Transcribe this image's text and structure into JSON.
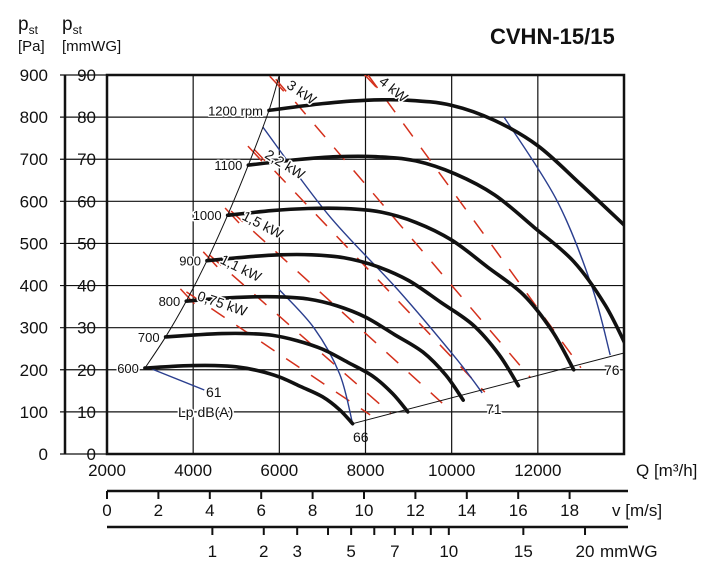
{
  "chart_data": {
    "type": "line",
    "title": "CVHN-15/15",
    "ylabel_pa": {
      "symbol": "p",
      "sub": "st",
      "unit": "[Pa]"
    },
    "ylabel_mmwg": {
      "symbol": "p",
      "sub": "st",
      "unit": "[mmWG]"
    },
    "xlabel": "Q [m³/h]",
    "xlim": [
      2000,
      14000
    ],
    "ylim": [
      0,
      900
    ],
    "grid": true,
    "x_ticks": [
      2000,
      4000,
      6000,
      8000,
      10000,
      12000
    ],
    "x_tick_labels": [
      "2000",
      "4000",
      "6000",
      "8000",
      "10000",
      "12000"
    ],
    "y_ticks_pa": [
      0,
      100,
      200,
      300,
      400,
      500,
      600,
      700,
      800,
      900
    ],
    "y_tick_labels_pa": [
      "0",
      "100",
      "200",
      "300",
      "400",
      "500",
      "600",
      "700",
      "800",
      "900"
    ],
    "y_tick_labels_mmwg": [
      "0",
      "10",
      "20",
      "30",
      "40",
      "50",
      "60",
      "70",
      "80",
      "90"
    ],
    "velocity_axis": {
      "label": "v [m/s]",
      "range": [
        0,
        20.2
      ],
      "ticks": [
        0,
        2,
        4,
        6,
        8,
        10,
        12,
        14,
        16,
        18
      ],
      "tick_labels": [
        "0",
        "2",
        "4",
        "6",
        "8",
        "10",
        "12",
        "14",
        "16",
        "18"
      ]
    },
    "dynamic_pressure_axis": {
      "label": "mmWG",
      "ticks_v": [
        4.1,
        6.1,
        7.4,
        8.6,
        9.5,
        10.4,
        11.2,
        11.9,
        12.6,
        13.3,
        16.2,
        18.6
      ],
      "ticks": [
        1,
        2,
        3,
        4,
        5,
        6,
        7,
        8,
        9,
        10,
        15,
        20
      ],
      "labeled": [
        "1",
        "2",
        "3",
        "",
        "5",
        "",
        "7",
        "",
        "",
        "10",
        "15",
        "20"
      ]
    },
    "series": [
      {
        "name": "600",
        "label": "600",
        "Q": [
          2880,
          3500,
          4000,
          4500,
          5000,
          5500,
          6000,
          6500,
          7000,
          7400,
          7700
        ],
        "P": [
          204,
          208,
          210,
          210,
          207,
          198,
          183,
          160,
          136,
          105,
          72
        ]
      },
      {
        "name": "700",
        "label": "700",
        "Q": [
          3360,
          4083,
          4667,
          5250,
          5833,
          6417,
          7000,
          7583,
          8167,
          8633,
          8983
        ],
        "P": [
          278,
          283,
          286,
          286,
          282,
          269,
          249,
          218,
          185,
          143,
          100
        ]
      },
      {
        "name": "800",
        "label": "800",
        "Q": [
          3840,
          4667,
          5333,
          6000,
          6667,
          7333,
          8000,
          8667,
          9333,
          9867,
          10267
        ],
        "P": [
          363,
          370,
          373,
          373,
          368,
          352,
          325,
          284,
          242,
          187,
          128
        ]
      },
      {
        "name": "900",
        "label": "900",
        "Q": [
          4320,
          5250,
          6000,
          6750,
          7500,
          8250,
          9000,
          9750,
          10500,
          11100,
          11550
        ],
        "P": [
          459,
          468,
          473,
          473,
          466,
          446,
          412,
          360,
          306,
          236,
          162
        ]
      },
      {
        "name": "1000",
        "label": "1000",
        "Q": [
          4800,
          5833,
          6667,
          7500,
          8333,
          9167,
          10000,
          10833,
          11667,
          12333,
          12833
        ],
        "P": [
          567,
          578,
          583,
          583,
          575,
          550,
          508,
          444,
          378,
          292,
          200
        ]
      },
      {
        "name": "1100",
        "label": "1100",
        "Q": [
          5280,
          6417,
          7333,
          8250,
          9167,
          10083,
          11000,
          11917,
          12833,
          13567,
          14117
        ],
        "P": [
          686,
          699,
          706,
          706,
          696,
          665,
          615,
          538,
          457,
          353,
          242
        ]
      },
      {
        "name": "1200",
        "label": "1200 rpm",
        "Q": [
          5760,
          7000,
          8000,
          9000,
          10000,
          11000,
          12000,
          13000,
          14000
        ],
        "P": [
          816,
          832,
          840,
          840,
          828,
          792,
          732,
          640,
          544
        ]
      }
    ],
    "stall_boundary": {
      "Q": [
        2880,
        3360,
        3840,
        4320,
        4800,
        5280,
        5760,
        6000
      ],
      "P": [
        204,
        278,
        363,
        459,
        567,
        686,
        816,
        900
      ]
    },
    "system_line": {
      "Q": [
        7700,
        14000
      ],
      "P": [
        72,
        240
      ]
    },
    "power_lines": [
      {
        "label": "0,75 kW",
        "Q": [
          3843,
          8107
        ],
        "P": [
          385,
          93
        ]
      },
      {
        "label": "1,1 kW",
        "Q": [
          4373,
          8591
        ],
        "P": [
          473,
          95
        ]
      },
      {
        "label": "1,5 kW",
        "Q": [
          4880,
          9779
        ],
        "P": [
          577,
          121
        ]
      },
      {
        "label": "2,2 kW",
        "Q": [
          5410,
          10770
        ],
        "P": [
          724,
          147
        ]
      },
      {
        "label": "3 kW",
        "Q": [
          5917,
          11830
        ],
        "P": [
          890,
          181
        ]
      },
      {
        "label": "4 kW",
        "Q": [
          8060,
          13000
        ],
        "P": [
          900,
          205
        ]
      }
    ],
    "sound_lines": [
      {
        "label": "61",
        "Q": [
          2990,
          4258
        ],
        "P": [
          204,
          152
        ]
      },
      {
        "label": "66",
        "Q": [
          6000,
          6800,
          7400,
          7700
        ],
        "P": [
          390,
          300,
          190,
          72
        ]
      },
      {
        "label": "71",
        "Q": [
          5620,
          7138,
          8751,
          10133,
          10709
        ],
        "P": [
          776,
          568,
          390,
          223,
          145
        ]
      },
      {
        "label": "76",
        "Q": [
          11216,
          12437,
          13243,
          13680
        ],
        "P": [
          800,
          603,
          401,
          235
        ]
      }
    ],
    "sound_unit_label": "Lp dB(A)",
    "colors": {
      "curves": "#111111",
      "power": "#d4301c",
      "sound": "#2b3f8f",
      "grid": "#111111"
    }
  }
}
